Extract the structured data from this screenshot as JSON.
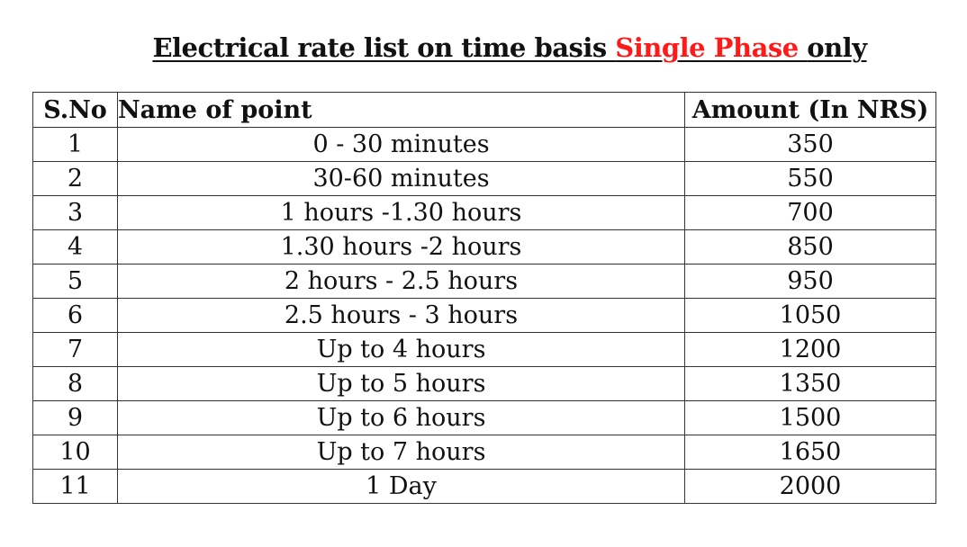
{
  "title": {
    "prefix": "Electrical rate list on time basis ",
    "highlight": "Single Phase ",
    "suffix": "only",
    "highlight_color": "#ff1a1a"
  },
  "table": {
    "headers": {
      "sno": "S.No",
      "name": "Name of point",
      "amount": "Amount (In NRS)"
    },
    "rows": [
      {
        "sno": "1",
        "name": "0 - 30 minutes",
        "amount": "350"
      },
      {
        "sno": "2",
        "name": "30-60 minutes",
        "amount": "550"
      },
      {
        "sno": "3",
        "name": "1 hours -1.30 hours",
        "amount": "700"
      },
      {
        "sno": "4",
        "name": "1.30 hours -2 hours",
        "amount": "850"
      },
      {
        "sno": "5",
        "name": "2 hours - 2.5 hours",
        "amount": "950"
      },
      {
        "sno": "6",
        "name": "2.5 hours - 3 hours",
        "amount": "1050"
      },
      {
        "sno": "7",
        "name": "Up to 4 hours",
        "amount": "1200"
      },
      {
        "sno": "8",
        "name": "Up to 5 hours",
        "amount": "1350"
      },
      {
        "sno": "9",
        "name": "Up to 6 hours",
        "amount": "1500"
      },
      {
        "sno": "10",
        "name": "Up to 7 hours",
        "amount": "1650"
      },
      {
        "sno": "11",
        "name": "1 Day",
        "amount": "2000"
      }
    ]
  }
}
